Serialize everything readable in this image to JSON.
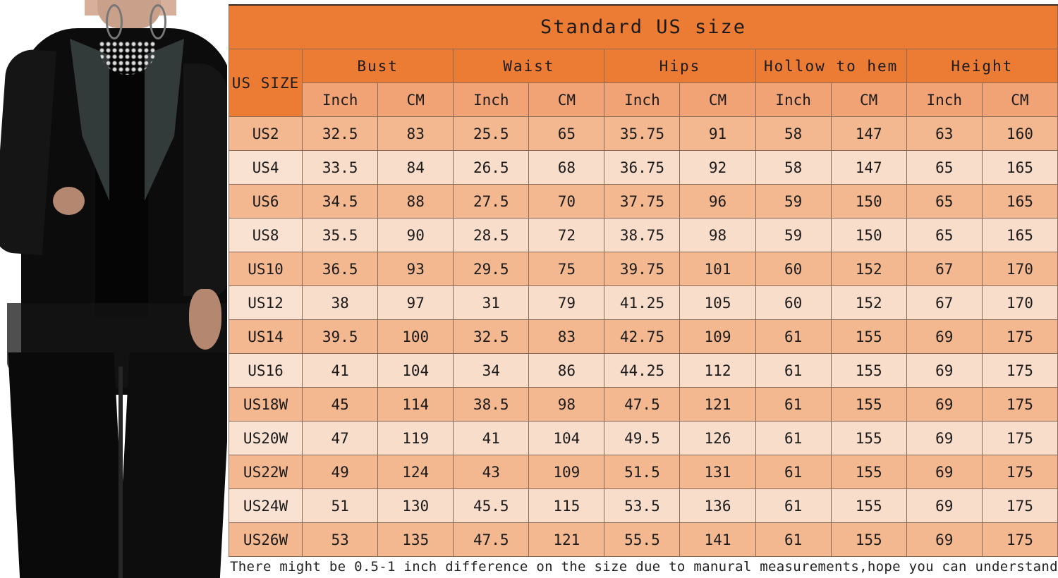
{
  "title": "Standard US size",
  "size_column_header": "US SIZE",
  "groups": [
    "Bust",
    "Waist",
    "Hips",
    "Hollow to hem",
    "Height"
  ],
  "units": [
    "Inch",
    "CM",
    "Inch",
    "CM",
    "Inch",
    "CM",
    "Inch",
    "CM",
    "Inch",
    "CM"
  ],
  "rows": [
    {
      "size": "US2",
      "values": [
        "32.5",
        "83",
        "25.5",
        "65",
        "35.75",
        "91",
        "58",
        "147",
        "63",
        "160"
      ]
    },
    {
      "size": "US4",
      "values": [
        "33.5",
        "84",
        "26.5",
        "68",
        "36.75",
        "92",
        "58",
        "147",
        "65",
        "165"
      ]
    },
    {
      "size": "US6",
      "values": [
        "34.5",
        "88",
        "27.5",
        "70",
        "37.75",
        "96",
        "59",
        "150",
        "65",
        "165"
      ]
    },
    {
      "size": "US8",
      "values": [
        "35.5",
        "90",
        "28.5",
        "72",
        "38.75",
        "98",
        "59",
        "150",
        "65",
        "165"
      ]
    },
    {
      "size": "US10",
      "values": [
        "36.5",
        "93",
        "29.5",
        "75",
        "39.75",
        "101",
        "60",
        "152",
        "67",
        "170"
      ]
    },
    {
      "size": "US12",
      "values": [
        "38",
        "97",
        "31",
        "79",
        "41.25",
        "105",
        "60",
        "152",
        "67",
        "170"
      ]
    },
    {
      "size": "US14",
      "values": [
        "39.5",
        "100",
        "32.5",
        "83",
        "42.75",
        "109",
        "61",
        "155",
        "69",
        "175"
      ]
    },
    {
      "size": "US16",
      "values": [
        "41",
        "104",
        "34",
        "86",
        "44.25",
        "112",
        "61",
        "155",
        "69",
        "175"
      ]
    },
    {
      "size": "US18W",
      "values": [
        "45",
        "114",
        "38.5",
        "98",
        "47.5",
        "121",
        "61",
        "155",
        "69",
        "175"
      ]
    },
    {
      "size": "US20W",
      "values": [
        "47",
        "119",
        "41",
        "104",
        "49.5",
        "126",
        "61",
        "155",
        "69",
        "175"
      ]
    },
    {
      "size": "US22W",
      "values": [
        "49",
        "124",
        "43",
        "109",
        "51.5",
        "131",
        "61",
        "155",
        "69",
        "175"
      ]
    },
    {
      "size": "US24W",
      "values": [
        "51",
        "130",
        "45.5",
        "115",
        "53.5",
        "136",
        "61",
        "155",
        "69",
        "175"
      ]
    },
    {
      "size": "US26W",
      "values": [
        "53",
        "135",
        "47.5",
        "121",
        "55.5",
        "141",
        "61",
        "155",
        "69",
        "175"
      ]
    }
  ],
  "footnote": "There might be 0.5-1 inch difference on the size due to manural measurements,hope you can understand.",
  "colors": {
    "title_bg": "#ec7c34",
    "unit_bg": "#f1a375",
    "row_dark": "#f3b890",
    "row_light": "#f9ddcb"
  }
}
